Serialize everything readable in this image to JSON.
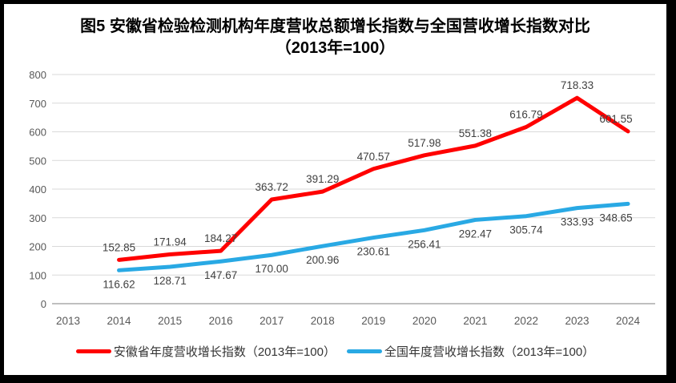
{
  "title": {
    "line1": "图5  安徽省检验检测机构年度营收总额增长指数与全国营收增长指数对比",
    "line2": "（2013年=100）"
  },
  "chart_data": {
    "type": "line",
    "title": "图5 安徽省检验检测机构年度营收总额增长指数与全国营收增长指数对比（2013年=100）",
    "categories": [
      2013,
      2014,
      2015,
      2016,
      2017,
      2018,
      2019,
      2020,
      2021,
      2022,
      2023,
      2024
    ],
    "ylim": [
      0,
      800
    ],
    "yticks": [
      0,
      100,
      200,
      300,
      400,
      500,
      600,
      700,
      800
    ],
    "grid": "horizontal",
    "legend_position": "bottom",
    "axis_label_color": "#595959",
    "data_label_color": "#404040",
    "gridline_color": "#D9D9D9",
    "baseline_color": "#BFBFBF",
    "series": [
      {
        "name": "安徽省年度营收增长指数（2013年=100）",
        "color": "#FF0000",
        "label_position": "above",
        "years": [
          2014,
          2015,
          2016,
          2017,
          2018,
          2019,
          2020,
          2021,
          2022,
          2023,
          2024
        ],
        "values": [
          152.85,
          171.94,
          184.27,
          363.72,
          391.29,
          470.57,
          517.98,
          551.38,
          616.79,
          718.33,
          601.55
        ],
        "labels": [
          "152.85",
          "171.94",
          "184.27",
          "363.72",
          "391.29",
          "470.57",
          "517.98",
          "551.38",
          "616.79",
          "718.33",
          "601.55"
        ]
      },
      {
        "name": "全国年度营收增长指数（2013年=100）",
        "color": "#29A9E4",
        "label_position": "below",
        "years": [
          2014,
          2015,
          2016,
          2017,
          2018,
          2019,
          2020,
          2021,
          2022,
          2023,
          2024
        ],
        "values": [
          116.62,
          128.71,
          147.67,
          170.0,
          200.96,
          230.61,
          256.41,
          292.47,
          305.74,
          333.93,
          348.65
        ],
        "labels": [
          "116.62",
          "128.71",
          "147.67",
          "170.00",
          "200.96",
          "230.61",
          "256.41",
          "292.47",
          "305.74",
          "333.93",
          "348.65"
        ]
      }
    ]
  }
}
